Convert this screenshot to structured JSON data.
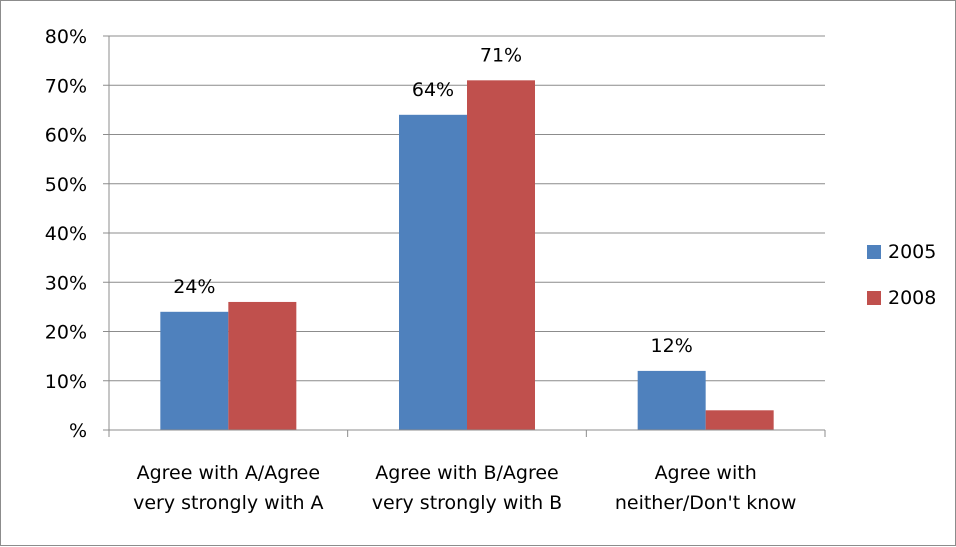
{
  "chart_data": {
    "type": "bar",
    "categories": [
      [
        "Agree with A/Agree",
        "very strongly with A"
      ],
      [
        "Agree with B/Agree",
        "very strongly with B"
      ],
      [
        "Agree with",
        "neither/Don't know"
      ]
    ],
    "series": [
      {
        "name": "2005",
        "color": "#4f81bd",
        "values": [
          24,
          64,
          12
        ],
        "data_labels": [
          "24%",
          "64%",
          "12%"
        ]
      },
      {
        "name": "2008",
        "color": "#c0504d",
        "values": [
          26,
          71,
          4
        ],
        "data_labels": [
          "",
          "71%",
          ""
        ]
      }
    ],
    "y_ticks": [
      0,
      10,
      20,
      30,
      40,
      50,
      60,
      70,
      80
    ],
    "y_tick_labels": [
      "%",
      "10%",
      "20%",
      "30%",
      "40%",
      "50%",
      "60%",
      "70%",
      "80%"
    ],
    "ylim": [
      0,
      80
    ],
    "title": "",
    "xlabel": "",
    "ylabel": "",
    "grid": true,
    "legend_position": "right",
    "gridline_color": "#8c8c8c",
    "axis_color": "#8c8c8c"
  }
}
